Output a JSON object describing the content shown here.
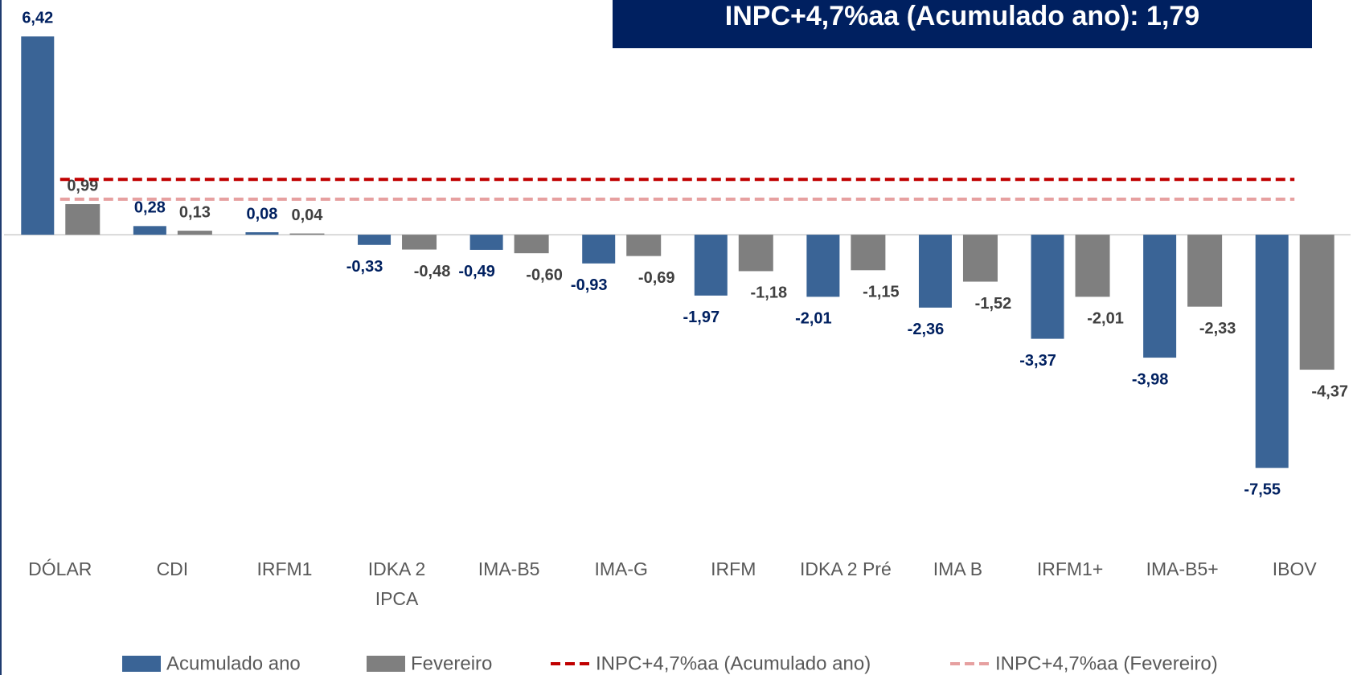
{
  "chart_data": {
    "type": "bar",
    "title": "INPC+4,7%aa (Acumulado ano): 1,79",
    "categories": [
      "DÓLAR",
      "CDI",
      "IRFM1",
      "IDKA 2 IPCA",
      "IMA-B5",
      "IMA-G",
      "IRFM",
      "IDKA 2 Pré",
      "IMA B",
      "IRFM1+",
      "IMA-B5+",
      "IBOV"
    ],
    "series": [
      {
        "name": "Acumulado ano",
        "type": "bar",
        "color": "#3a6496",
        "label_color": "#002060",
        "values": [
          6.42,
          0.28,
          0.08,
          -0.33,
          -0.49,
          -0.93,
          -1.97,
          -2.01,
          -2.36,
          -3.37,
          -3.98,
          -7.55
        ],
        "value_labels": [
          "6,42",
          "0,28",
          "0,08",
          "-0,33",
          "-0,49",
          "-0,93",
          "-1,97",
          "-2,01",
          "-2,36",
          "-3,37",
          "-3,98",
          "-7,55"
        ]
      },
      {
        "name": "Fevereiro",
        "type": "bar",
        "color": "#7f7f7f",
        "label_color": "#404040",
        "values": [
          0.99,
          0.13,
          0.04,
          -0.48,
          -0.6,
          -0.69,
          -1.18,
          -1.15,
          -1.52,
          -2.01,
          -2.33,
          -4.37
        ],
        "value_labels": [
          "0,99",
          "0,13",
          "0,04",
          "-0,48",
          "-0,60",
          "-0,69",
          "-1,18",
          "-1,15",
          "-1,52",
          "-2,01",
          "-2,33",
          "-4,37"
        ]
      },
      {
        "name": "INPC+4,7%aa (Acumulado ano)",
        "type": "line",
        "color": "#c00000",
        "values": [
          1.79,
          1.79,
          1.79,
          1.79,
          1.79,
          1.79,
          1.79,
          1.79,
          1.79,
          1.79,
          1.79,
          1.79
        ]
      },
      {
        "name": "INPC+4,7%aa (Fevereiro)",
        "type": "line",
        "color": "#e6a0a0",
        "values": [
          1.15,
          1.15,
          1.15,
          1.15,
          1.15,
          1.15,
          1.15,
          1.15,
          1.15,
          1.15,
          1.15,
          1.15
        ]
      }
    ],
    "ylim": [
      -9,
      7.6
    ]
  }
}
